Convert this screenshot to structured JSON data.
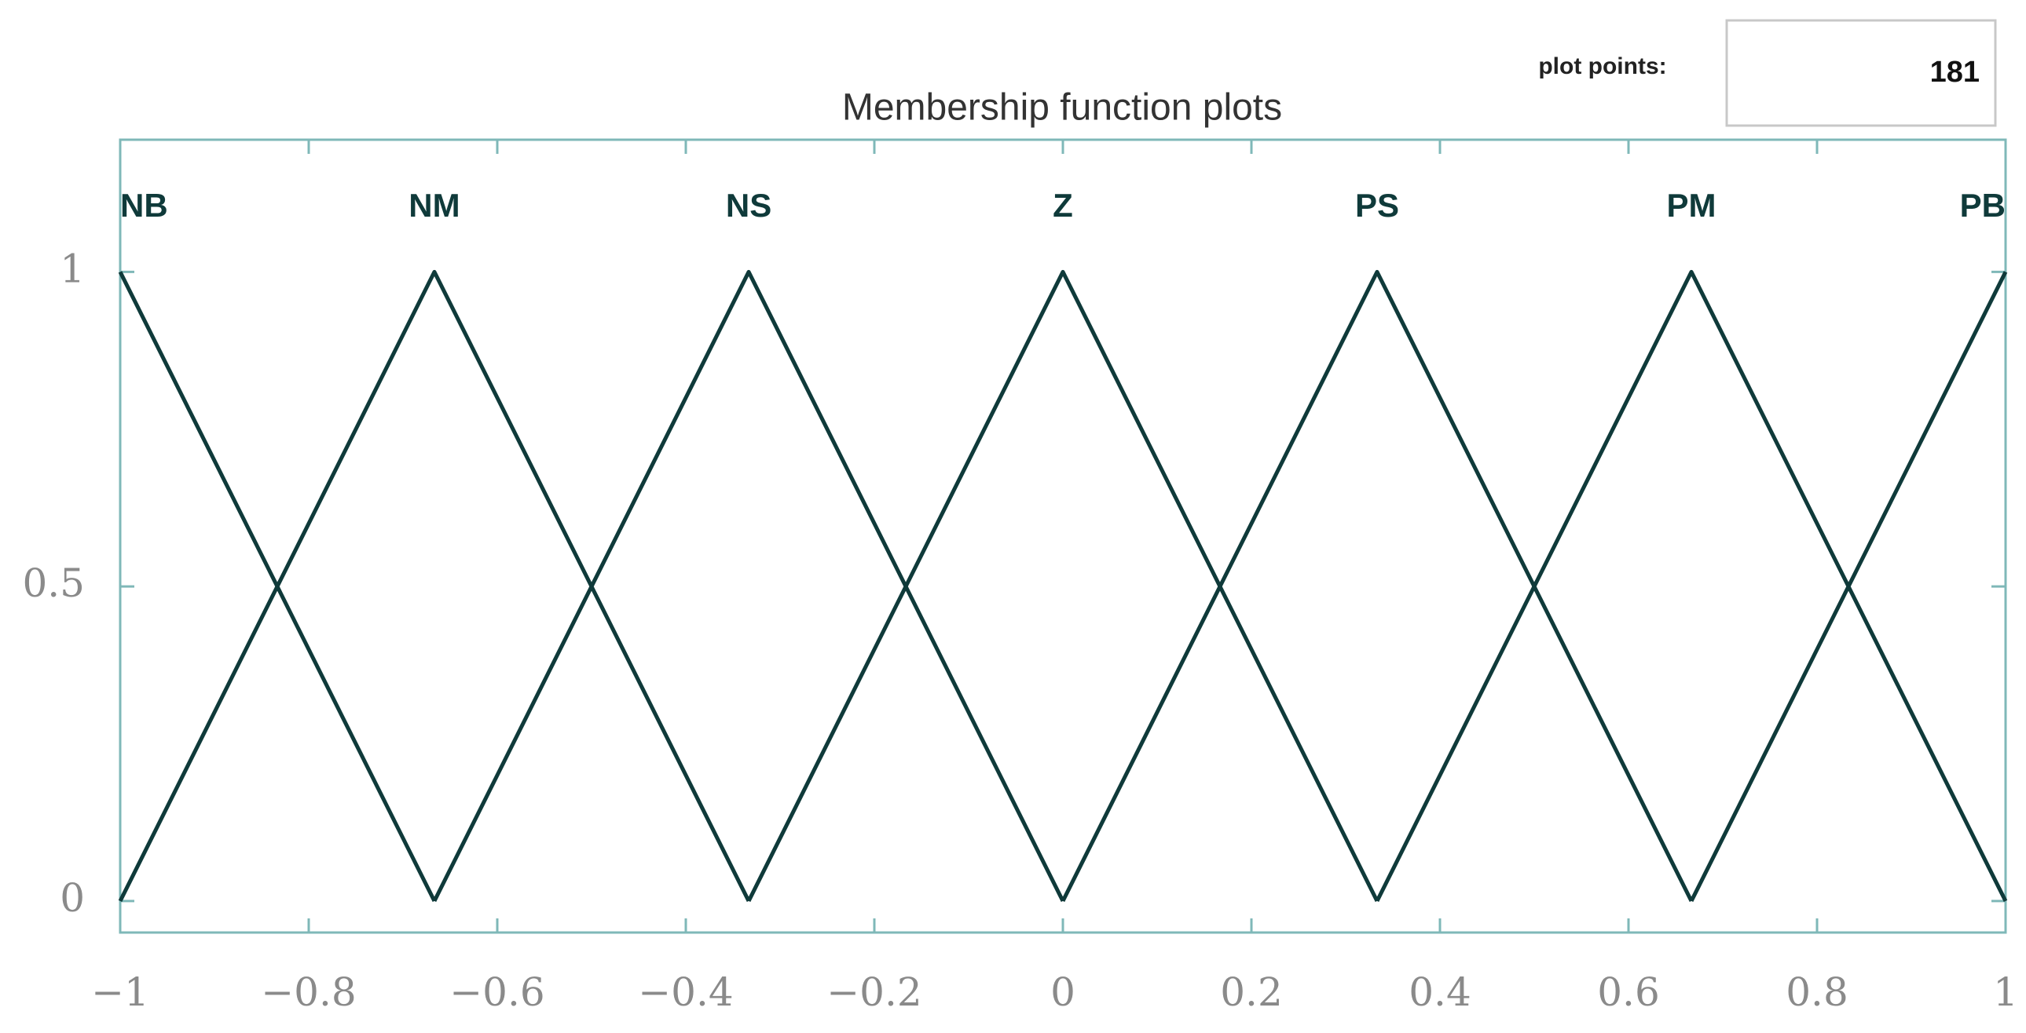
{
  "chart_data": {
    "type": "line",
    "title": "Membership function plots",
    "xlim": [
      -1,
      1
    ],
    "xticks": [
      {
        "value": -1,
        "label": "−1"
      },
      {
        "value": -0.8,
        "label": "−0.8"
      },
      {
        "value": -0.6,
        "label": "−0.6"
      },
      {
        "value": -0.4,
        "label": "−0.4"
      },
      {
        "value": -0.2,
        "label": "−0.2"
      },
      0,
      0.2,
      0.4,
      0.6,
      0.8,
      1
    ],
    "ylim": [
      -0.05,
      1.21
    ],
    "yticks": [
      0,
      0.5,
      1
    ],
    "series": [
      {
        "name": "NB",
        "color": "#0f3a3a",
        "x": [
          -1,
          -0.6667
        ],
        "values": [
          1,
          0
        ]
      },
      {
        "name": "NM",
        "color": "#0f3a3a",
        "x": [
          -1,
          -0.6667,
          -0.3333
        ],
        "values": [
          0,
          1,
          0
        ]
      },
      {
        "name": "NS",
        "color": "#0f3a3a",
        "x": [
          -0.6667,
          -0.3333,
          0
        ],
        "values": [
          0,
          1,
          0
        ]
      },
      {
        "name": "Z",
        "color": "#0f3a3a",
        "x": [
          -0.3333,
          0,
          0.3333
        ],
        "values": [
          0,
          1,
          0
        ]
      },
      {
        "name": "PS",
        "color": "#0f3a3a",
        "x": [
          0,
          0.3333,
          0.6667
        ],
        "values": [
          0,
          1,
          0
        ]
      },
      {
        "name": "PM",
        "color": "#0f3a3a",
        "x": [
          0.3333,
          0.6667,
          1
        ],
        "values": [
          0,
          1,
          0
        ]
      },
      {
        "name": "PB",
        "color": "#0f3a3a",
        "x": [
          0.6667,
          1
        ],
        "values": [
          0,
          1
        ]
      }
    ]
  },
  "controls": {
    "plot_points_label": "plot points:",
    "plot_points": 181
  }
}
